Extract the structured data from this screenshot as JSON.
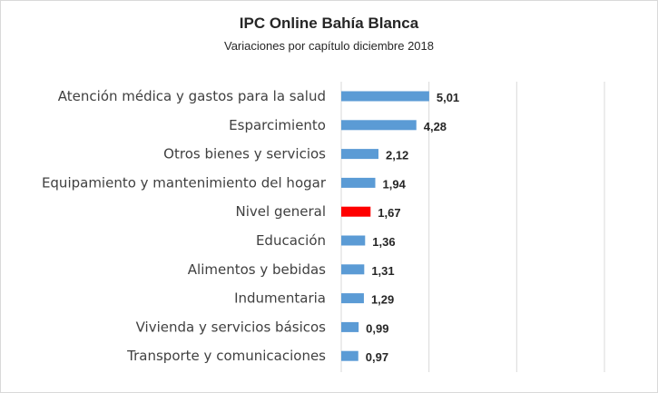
{
  "chart_data": {
    "type": "bar",
    "orientation": "horizontal",
    "title": "IPC Online Bahía Blanca",
    "subtitle": "Variaciones por capítulo diciembre 2018",
    "categories": [
      "Atención médica y gastos para la salud",
      "Esparcimiento",
      "Otros bienes y servicios",
      "Equipamiento y mantenimiento del hogar",
      "Nivel general",
      "Educación",
      "Alimentos y bebidas",
      "Indumentaria",
      "Vivienda y servicios básicos",
      "Transporte y comunicaciones"
    ],
    "values": [
      5.01,
      4.28,
      2.12,
      1.94,
      1.67,
      1.36,
      1.31,
      1.29,
      0.99,
      0.97
    ],
    "value_labels": [
      "5,01",
      "4,28",
      "2,12",
      "1,94",
      "1,67",
      "1,36",
      "1,31",
      "1,29",
      "0,99",
      "0,97"
    ],
    "xlim": [
      0,
      15
    ],
    "grid": true,
    "legend": "none",
    "colors": {
      "bar": "#5b9bd5",
      "highlight": "#ff0000",
      "grid": "#d9d9d9"
    },
    "highlight_category": "Nivel general"
  }
}
